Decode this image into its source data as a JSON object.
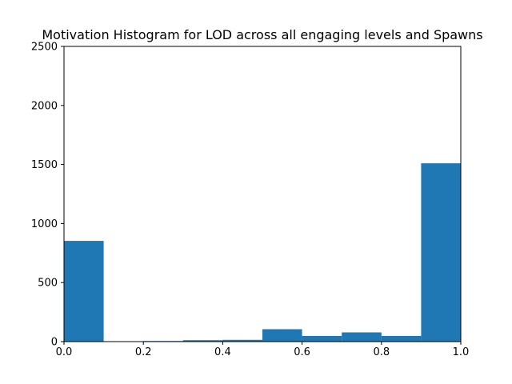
{
  "chart_data": {
    "type": "bar",
    "title": "Motivation Histogram for LOD across all engaging levels and Spawns",
    "xlabel": "",
    "ylabel": "",
    "bin_edges": [
      0.0,
      0.1,
      0.2,
      0.3,
      0.4,
      0.5,
      0.6,
      0.7,
      0.8,
      0.9,
      1.0
    ],
    "values": [
      853,
      0,
      5,
      12,
      15,
      105,
      48,
      78,
      48,
      1510
    ],
    "xlim": [
      0.0,
      1.0
    ],
    "ylim": [
      0,
      2500
    ],
    "xticks": [
      "0.0",
      "0.2",
      "0.4",
      "0.6",
      "0.8",
      "1.0"
    ],
    "yticks": [
      "0",
      "500",
      "1000",
      "1500",
      "2000",
      "2500"
    ],
    "bar_color": "#1f77b4",
    "grid": false
  }
}
